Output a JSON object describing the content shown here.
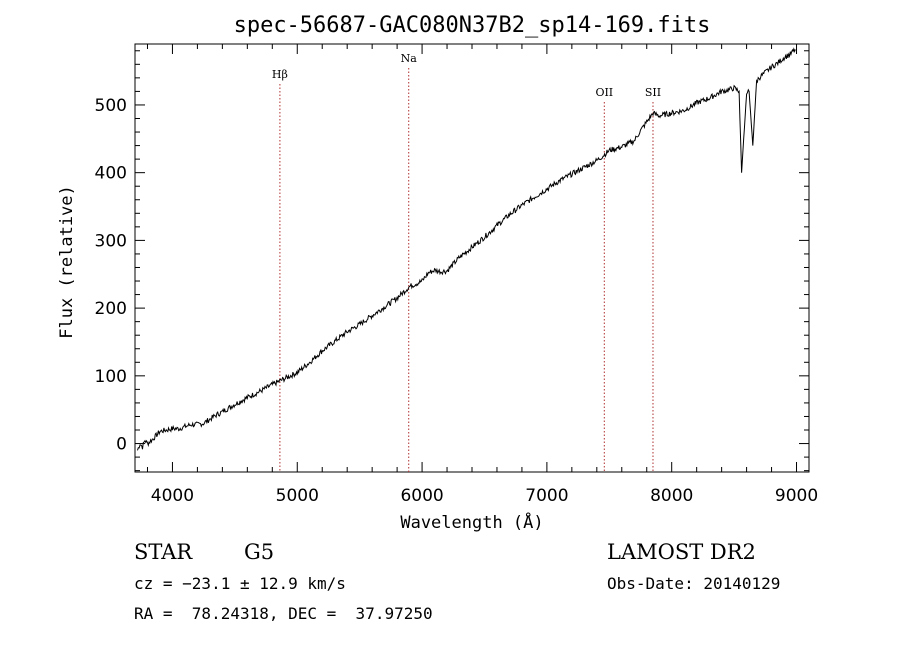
{
  "chart_data": {
    "type": "line",
    "title": "spec-56687-GAC080N37B2_sp14-169.fits",
    "xlabel": "Wavelength (Å)",
    "ylabel": "Flux (relative)",
    "xlim": [
      3700,
      9100
    ],
    "ylim": [
      -42,
      590
    ],
    "xticks": [
      4000,
      5000,
      6000,
      7000,
      8000,
      9000
    ],
    "yticks": [
      0,
      100,
      200,
      300,
      400,
      500
    ],
    "line_color": "#000000",
    "marker_color": "#b03030",
    "series": [
      {
        "x": [
          3720,
          3740,
          3760,
          3780,
          3800,
          3850,
          3900,
          3950,
          4000,
          4050,
          4100,
          4150,
          4200,
          4250,
          4300,
          4350,
          4400,
          4500,
          4600,
          4700,
          4800,
          4900,
          5000,
          5100,
          5200,
          5300,
          5400,
          5500,
          5600,
          5700,
          5800,
          5900,
          6000,
          6050,
          6100,
          6150,
          6200,
          6300,
          6400,
          6500,
          6600,
          6700,
          6800,
          6900,
          7000,
          7100,
          7200,
          7300,
          7400,
          7450,
          7500,
          7600,
          7700,
          7750,
          7800,
          7850,
          7900,
          8000,
          8100,
          8200,
          8300,
          8400,
          8450,
          8500,
          8540,
          8560,
          8600,
          8620,
          8650,
          8680,
          8700,
          8750,
          8800,
          8850,
          8900,
          8950,
          8990
        ],
        "y": [
          -10,
          0,
          -5,
          5,
          0,
          8,
          18,
          20,
          22,
          22,
          25,
          28,
          28,
          30,
          36,
          42,
          47,
          58,
          68,
          77,
          87,
          96,
          105,
          120,
          137,
          151,
          165,
          176,
          189,
          202,
          215,
          232,
          240,
          252,
          256,
          254,
          255,
          275,
          290,
          305,
          322,
          338,
          352,
          364,
          376,
          388,
          398,
          408,
          418,
          425,
          433,
          438,
          447,
          462,
          475,
          488,
          484,
          488,
          492,
          503,
          510,
          520,
          522,
          525,
          520,
          400,
          518,
          520,
          440,
          535,
          540,
          548,
          556,
          562,
          570,
          575,
          582
        ]
      }
    ],
    "line_markers": [
      {
        "label": "Hβ",
        "x": 4861
      },
      {
        "label": "Na",
        "x": 5893
      },
      {
        "label": "OII",
        "x": 7460
      },
      {
        "label": "SII",
        "x": 7850
      }
    ]
  },
  "info": {
    "class": "STAR",
    "subclass": "G5",
    "cz": "cz = −23.1 ± 12.9 km/s",
    "radec": "RA =  78.24318, DEC =  37.97250",
    "survey": "LAMOST DR2",
    "obs_date": "Obs-Date: 20140129"
  }
}
